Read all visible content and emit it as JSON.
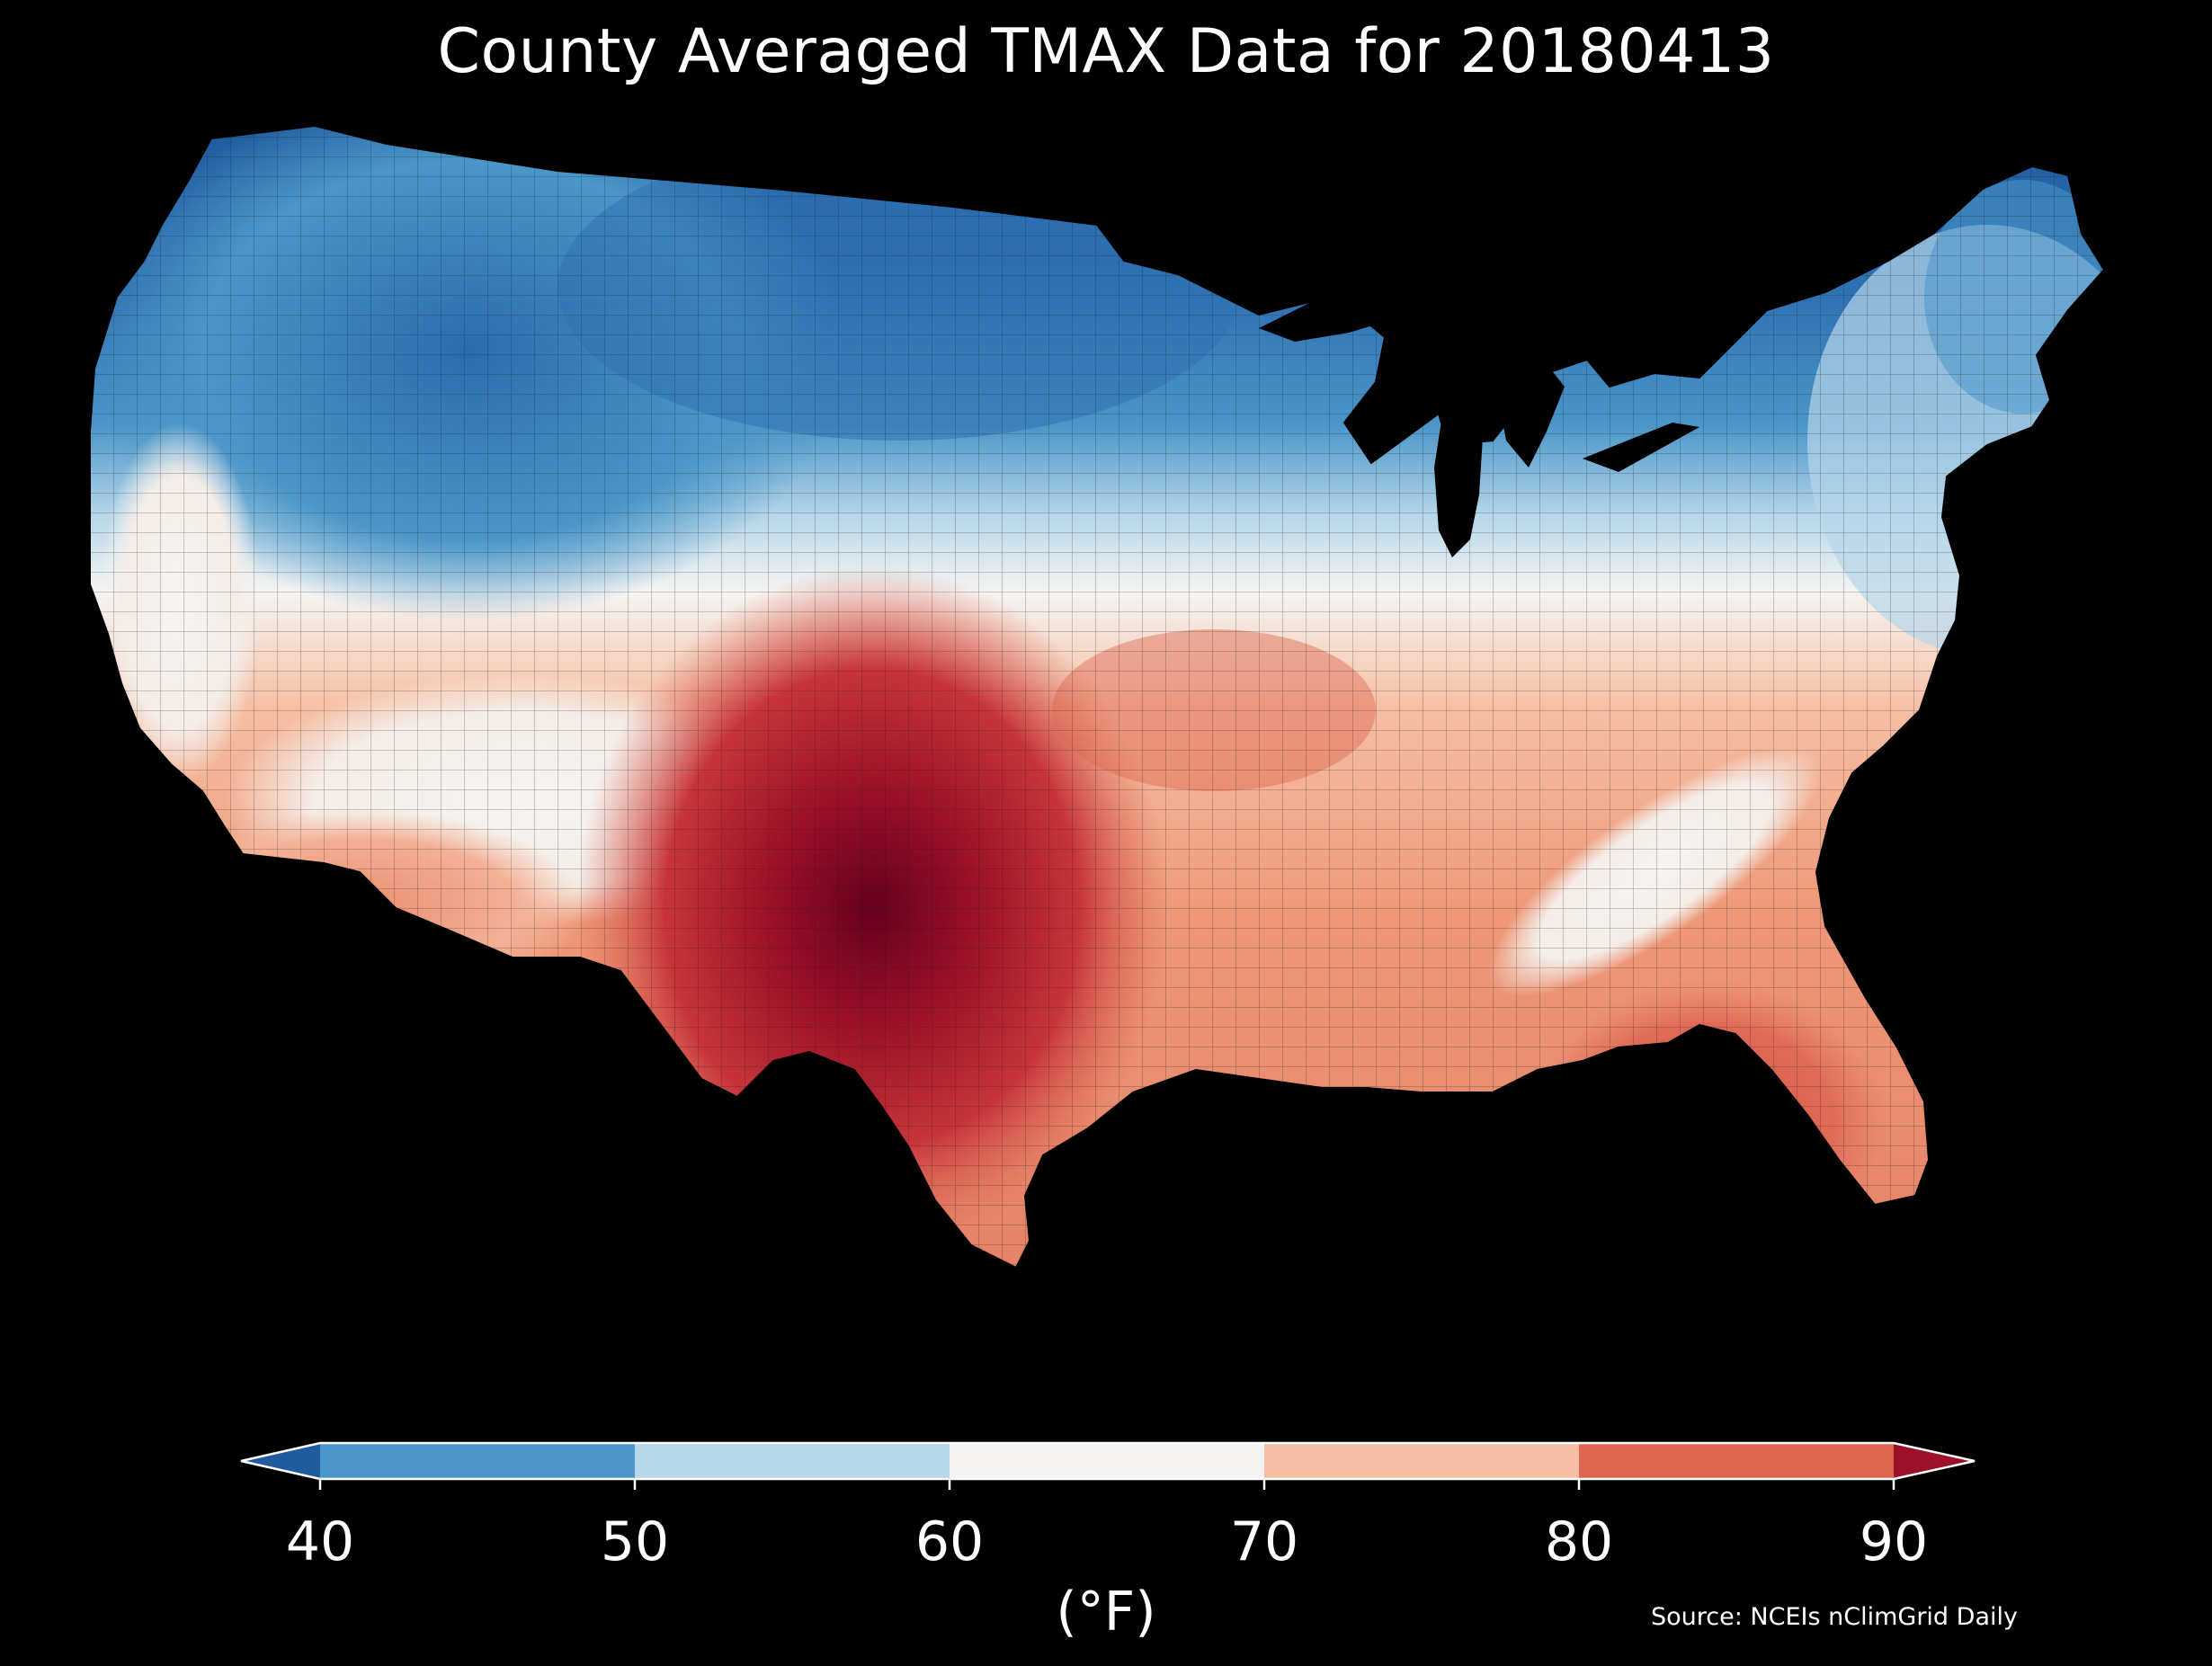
{
  "title": "County Averaged TMAX Data for 20180413",
  "colorbar": {
    "ticks": [
      "40",
      "50",
      "60",
      "70",
      "80",
      "90"
    ],
    "unit": "(°F)",
    "bins": [
      {
        "range": "<40",
        "color": "#1f5b9e"
      },
      {
        "range": "40-50",
        "color": "#4a96c8"
      },
      {
        "range": "50-60",
        "color": "#b6d6e9"
      },
      {
        "range": "60-70",
        "color": "#f5f4f2"
      },
      {
        "range": "70-80",
        "color": "#f6bfa3"
      },
      {
        "range": "80-90",
        "color": "#dd6650"
      },
      {
        "range": ">90",
        "color": "#9c1127"
      }
    ]
  },
  "source": "Source: NCEIs nClimGrid Daily",
  "map": {
    "region": "Contiguous United States",
    "variable": "TMAX",
    "date": "20180413",
    "colors": {
      "background": "#000000",
      "county_border": "#222222",
      "very_cold": "#1f5b9e",
      "cold": "#4a96c8",
      "cool": "#b6d6e9",
      "neutral": "#f5f4f2",
      "warm": "#f6bfa3",
      "hot": "#dd6650",
      "very_hot": "#9c1127"
    }
  }
}
